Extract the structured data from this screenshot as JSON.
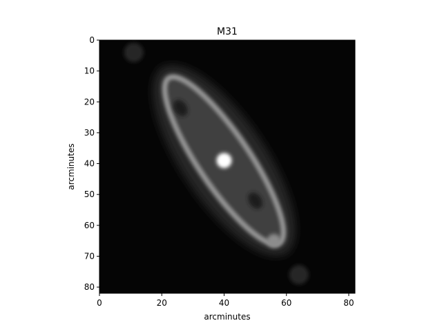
{
  "chart_data": {
    "type": "heatmap",
    "title": "M31",
    "xlabel": "arcminutes",
    "ylabel": "arcminutes",
    "xlim": [
      0,
      82
    ],
    "ylim": [
      82,
      0
    ],
    "xticks": [
      0,
      20,
      40,
      60,
      80
    ],
    "yticks": [
      0,
      10,
      20,
      30,
      40,
      50,
      60,
      70,
      80
    ],
    "colormap": "gray",
    "background_color": "#050505",
    "grid": false,
    "features": [
      {
        "kind": "nucleus",
        "x": 40,
        "y": 39,
        "intensity": 1.0
      },
      {
        "kind": "bright-knot",
        "x": 56,
        "y": 65,
        "intensity": 0.55
      },
      {
        "kind": "disk-ring",
        "x_center": 40,
        "y_center": 39,
        "major_axis": 64,
        "minor_axis": 17,
        "angle_deg": 56,
        "intensity": 0.45
      },
      {
        "kind": "dark-lane",
        "x": 26,
        "y": 22,
        "intensity": 0.12
      },
      {
        "kind": "dark-lane",
        "x": 50,
        "y": 52,
        "intensity": 0.12
      },
      {
        "kind": "faint-blob",
        "x": 11,
        "y": 4,
        "intensity": 0.15
      },
      {
        "kind": "faint-blob",
        "x": 64,
        "y": 76,
        "intensity": 0.15
      }
    ]
  }
}
